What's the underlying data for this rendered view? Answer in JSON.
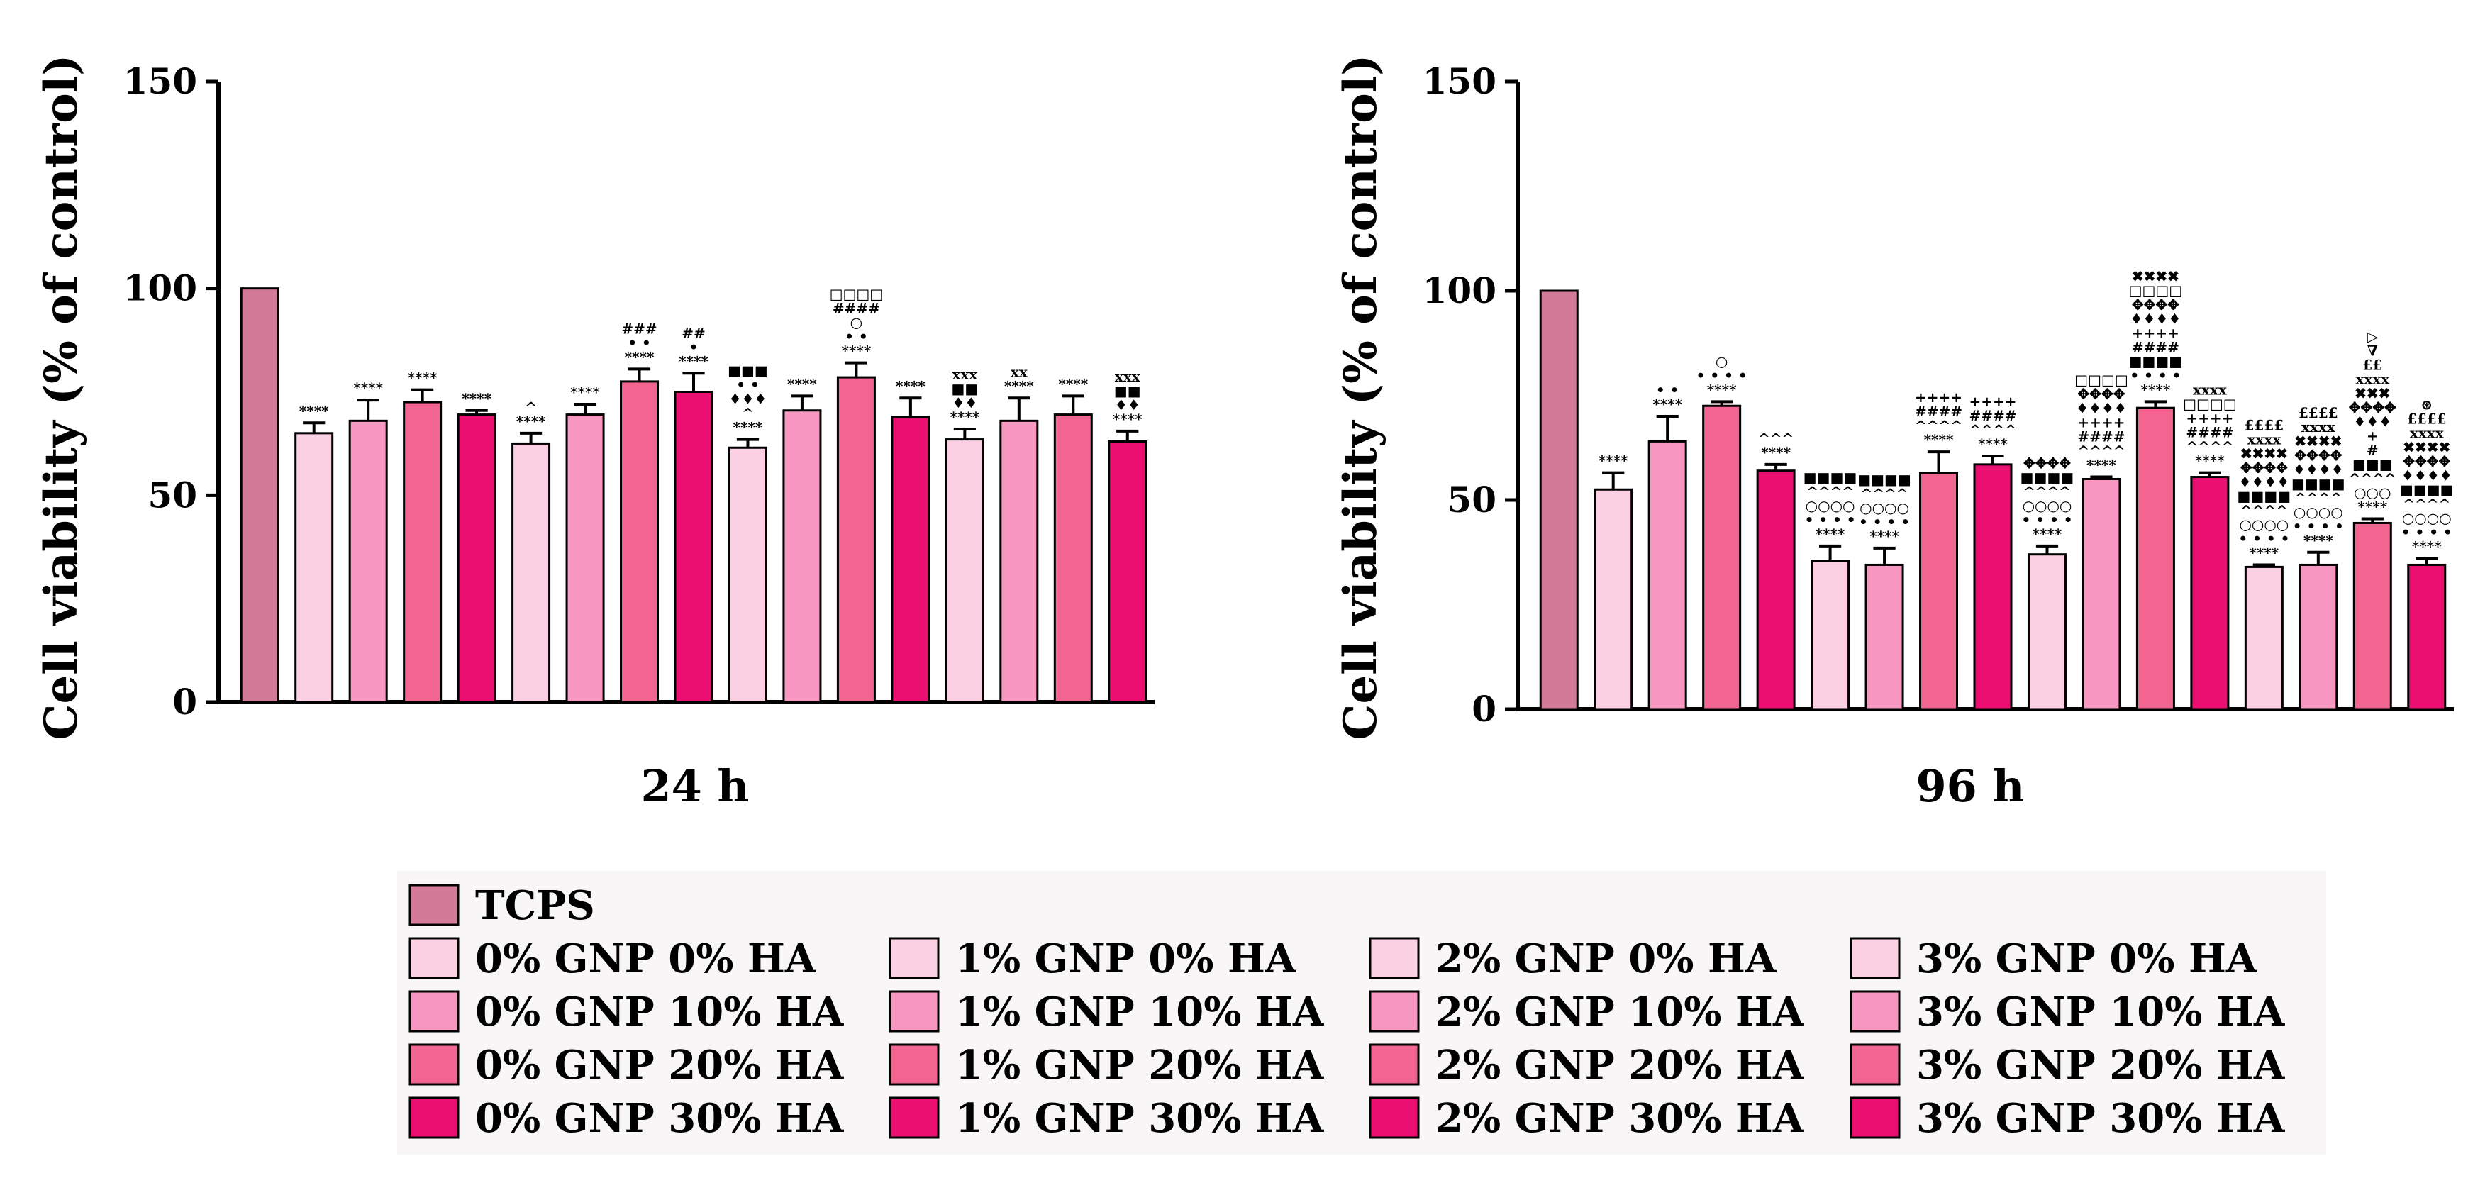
{
  "chart_data": [
    {
      "type": "bar",
      "title": "24 h",
      "ylabel": "Cell viability (% of control)",
      "ylim": [
        0,
        150
      ],
      "yticks": [
        0,
        50,
        100,
        150
      ],
      "categories": [
        "TCPS",
        "0% GNP 0% HA",
        "0% GNP 10% HA",
        "0% GNP 20% HA",
        "0% GNP 30% HA",
        "1% GNP 0% HA",
        "1% GNP 10% HA",
        "1% GNP 20% HA",
        "1% GNP 30% HA",
        "2% GNP 0% HA",
        "2% GNP 10% HA",
        "2% GNP 20% HA",
        "2% GNP 30% HA",
        "3% GNP 0% HA",
        "3% GNP 10% HA",
        "3% GNP 20% HA",
        "3% GNP 30% HA"
      ],
      "values": [
        100,
        65,
        68,
        72.5,
        69.5,
        62.5,
        69.5,
        77.5,
        75,
        61.5,
        70.5,
        78.5,
        69,
        63.5,
        68,
        69.5,
        63
      ],
      "errors": [
        0,
        2.5,
        5,
        3,
        1,
        2.5,
        2.5,
        3,
        4.5,
        2,
        3.5,
        3.5,
        4.5,
        2.5,
        5.5,
        4.5,
        2.5
      ],
      "annotations": [
        [],
        [
          "****"
        ],
        [
          "****"
        ],
        [
          "****"
        ],
        [
          "****"
        ],
        [
          "****",
          "^"
        ],
        [
          "****"
        ],
        [
          "****",
          "• •",
          "###"
        ],
        [
          "****",
          "•",
          "##"
        ],
        [
          "****",
          "^",
          "♦♦♦",
          "• •",
          "■■■"
        ],
        [
          "****"
        ],
        [
          "****",
          "• •",
          "○",
          "####",
          "□□□□"
        ],
        [
          "****"
        ],
        [
          "****",
          "♦♦",
          "■■",
          "xxx"
        ],
        [
          "****",
          "xx"
        ],
        [
          "****"
        ],
        [
          "****",
          "♦♦",
          "■■",
          "xxx"
        ]
      ]
    },
    {
      "type": "bar",
      "title": "96 h",
      "ylabel": "Cell viability (% of control)",
      "ylim": [
        0,
        150
      ],
      "yticks": [
        0,
        50,
        100,
        150
      ],
      "categories": [
        "TCPS",
        "0% GNP 0% HA",
        "0% GNP 10% HA",
        "0% GNP 20% HA",
        "0% GNP 30% HA",
        "1% GNP 0% HA",
        "1% GNP 10% HA",
        "1% GNP 20% HA",
        "1% GNP 30% HA",
        "2% GNP 0% HA",
        "2% GNP 10% HA",
        "2% GNP 20% HA",
        "2% GNP 30% HA",
        "3% GNP 0% HA",
        "3% GNP 10% HA",
        "3% GNP 20% HA",
        "3% GNP 30% HA"
      ],
      "values": [
        100,
        52.5,
        64,
        72.5,
        57,
        35.5,
        34.5,
        56.5,
        58.5,
        37,
        55,
        72,
        55.5,
        34,
        34.5,
        44.5,
        34.5
      ],
      "errors": [
        0,
        4,
        6,
        1,
        1.5,
        3.5,
        4,
        5,
        2,
        2,
        0.5,
        1.5,
        1,
        0.5,
        3,
        1,
        1.5
      ],
      "annotations": [
        [],
        [
          "****"
        ],
        [
          "****",
          "• •"
        ],
        [
          "****",
          "• • • •",
          "○"
        ],
        [
          "****",
          "^^^"
        ],
        [
          "****",
          "• • • •",
          "○○○○",
          "^^^^",
          "■■■■"
        ],
        [
          "****",
          "• • • •",
          "○○○○",
          "^^^^",
          "■■■■"
        ],
        [
          "****",
          "^^^^",
          "####",
          "++++"
        ],
        [
          "****",
          "^^^^",
          "####",
          "++++"
        ],
        [
          "****",
          "• • • •",
          "○○○○",
          "^^^^",
          "■■■■",
          "✥✥✥✥"
        ],
        [
          "****",
          "^^^^",
          "####",
          "++++",
          "♦♦♦♦",
          "✥✥✥✥",
          "□□□□"
        ],
        [
          "****",
          "• • • •",
          "■■■■",
          "####",
          "++++",
          "♦♦♦♦",
          "✥✥✥✥",
          "□□□□",
          "✖✖✖✖"
        ],
        [
          "****",
          "^^^^",
          "####",
          "++++",
          "□□□□",
          "xxxx"
        ],
        [
          "****",
          "• • • •",
          "○○○○",
          "^^^^",
          "■■■■",
          "♦♦♦♦",
          "✥✥✥✥",
          "✖✖✖✖",
          "xxxx",
          "££££"
        ],
        [
          "****",
          "• • • •",
          "○○○○",
          "^^^^",
          "■■■■",
          "♦♦♦♦",
          "✥✥✥✥",
          "✖✖✖✖",
          "xxxx",
          "££££"
        ],
        [
          "****",
          "○○○",
          "^^^^",
          "■■■",
          "#",
          "+",
          "♦♦♦",
          "✥✥✥✥",
          "✖✖✖",
          "xxxx",
          "££",
          "∇",
          "▷"
        ],
        [
          "****",
          "• • • •",
          "○○○○",
          "^^^^",
          "■■■■",
          "♦♦♦♦",
          "✥✥✥✥",
          "✖✖✖✖",
          "xxxx",
          "££££",
          "⊛"
        ]
      ]
    }
  ],
  "legend": {
    "items": [
      {
        "label": "TCPS",
        "color": "#d27a97"
      },
      {
        "label": "0% GNP 0% HA",
        "color": "#fbd0e2"
      },
      {
        "label": "0% GNP 10% HA",
        "color": "#f898c2"
      },
      {
        "label": "0% GNP 20% HA",
        "color": "#f26590"
      },
      {
        "label": "0% GNP 30% HA",
        "color": "#ec0f72"
      },
      {
        "label": "1% GNP 0% HA",
        "color": "#fbd0e2"
      },
      {
        "label": "1% GNP 10% HA",
        "color": "#f898c2"
      },
      {
        "label": "1% GNP 20% HA",
        "color": "#f26590"
      },
      {
        "label": "1% GNP 30% HA",
        "color": "#ec0f72"
      },
      {
        "label": "2% GNP 0% HA",
        "color": "#fbd0e2"
      },
      {
        "label": "2% GNP 10% HA",
        "color": "#f898c2"
      },
      {
        "label": "2% GNP 20% HA",
        "color": "#f26590"
      },
      {
        "label": "2% GNP 30% HA",
        "color": "#ec0f72"
      },
      {
        "label": "3% GNP 0% HA",
        "color": "#fbd0e2"
      },
      {
        "label": "3% GNP 10% HA",
        "color": "#f898c2"
      },
      {
        "label": "3% GNP 20% HA",
        "color": "#f26590"
      },
      {
        "label": "3% GNP 30% HA",
        "color": "#ec0f72"
      }
    ]
  }
}
